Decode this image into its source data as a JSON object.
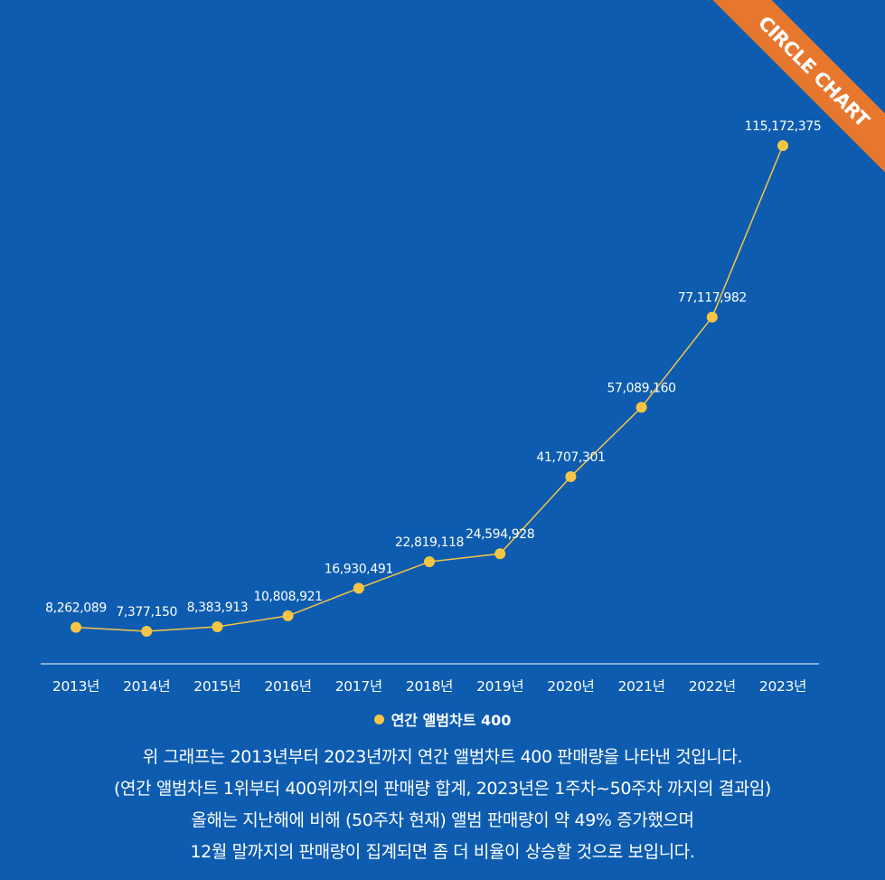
{
  "badge": {
    "label": "CIRCLE CHART"
  },
  "colors": {
    "background": "#0d5cb0",
    "series": "#f6c544",
    "text": "#ffffff",
    "badge": "#e8772e"
  },
  "chart_data": {
    "type": "line",
    "categories": [
      "2013년",
      "2014년",
      "2015년",
      "2016년",
      "2017년",
      "2018년",
      "2019년",
      "2020년",
      "2021년",
      "2022년",
      "2023년"
    ],
    "series": [
      {
        "name": "연간 앨범차트 400",
        "values": [
          8262089,
          7377150,
          8383913,
          10808921,
          16930491,
          22819118,
          24594928,
          41707301,
          57089160,
          77117982,
          115172375
        ],
        "value_labels": [
          "8,262,089",
          "7,377,150",
          "8,383,913",
          "10,808,921",
          "16,930,491",
          "22,819,118",
          "24,594,928",
          "41,707,301",
          "57,089,160",
          "77,117,982",
          "115,172,375"
        ]
      }
    ],
    "title": "",
    "xlabel": "",
    "ylabel": "",
    "ylim": [
      0,
      115172375
    ],
    "grid": false,
    "legend": "bottom-center"
  },
  "caption": {
    "lines": [
      "위 그래프는 2013년부터 2023년까지 연간 앨범차트 400 판매량을 나타낸 것입니다.",
      "(연간 앨범차트 1위부터 400위까지의 판매량 합계, 2023년은 1주차~50주차 까지의 결과임)",
      "올해는 지난해에 비해 (50주차 현재) 앨범 판매량이  약 49% 증가했으며",
      "12월 말까지의 판매량이 집계되면 좀 더 비율이 상승할 것으로 보입니다."
    ]
  }
}
